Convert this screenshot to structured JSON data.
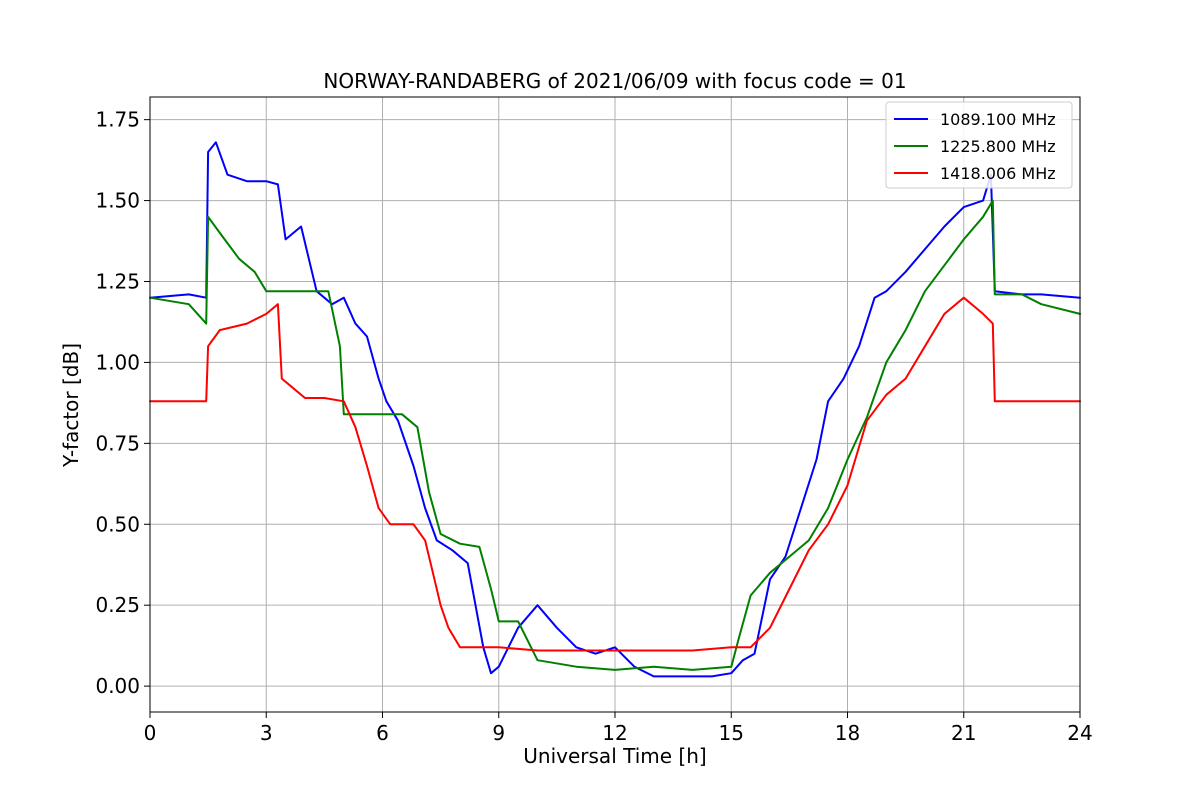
{
  "chart_data": {
    "type": "line",
    "title": "NORWAY-RANDABERG of 2021/06/09 with focus code = 01",
    "xlabel": "Universal Time [h]",
    "ylabel": "Y-factor [dB]",
    "xlim": [
      0,
      24
    ],
    "ylim": [
      -0.08,
      1.82
    ],
    "xticks": [
      0,
      3,
      6,
      9,
      12,
      15,
      18,
      21,
      24
    ],
    "yticks": [
      0.0,
      0.25,
      0.5,
      0.75,
      1.0,
      1.25,
      1.5,
      1.75
    ],
    "xtick_labels": [
      "0",
      "3",
      "6",
      "9",
      "12",
      "15",
      "18",
      "21",
      "24"
    ],
    "ytick_labels": [
      "0.00",
      "0.25",
      "0.50",
      "0.75",
      "1.00",
      "1.25",
      "1.50",
      "1.75"
    ],
    "grid": true,
    "legend_position": "top-right",
    "series": [
      {
        "name": "1089.100 MHz",
        "color": "#0000ff",
        "x": [
          0,
          1.0,
          1.45,
          1.5,
          1.7,
          2.0,
          2.5,
          3.0,
          3.3,
          3.5,
          3.9,
          4.3,
          4.7,
          5.0,
          5.3,
          5.6,
          5.9,
          6.1,
          6.4,
          6.8,
          7.1,
          7.4,
          7.8,
          8.2,
          8.6,
          8.8,
          9.0,
          9.5,
          10.0,
          10.5,
          11.0,
          11.5,
          12.0,
          12.5,
          13.0,
          13.5,
          14.0,
          14.5,
          15.0,
          15.3,
          15.6,
          16.0,
          16.4,
          16.8,
          17.2,
          17.5,
          17.9,
          18.3,
          18.7,
          19.0,
          19.5,
          20.0,
          20.5,
          21.0,
          21.5,
          21.7,
          21.8,
          22.5,
          23.0,
          24.0
        ],
        "y": [
          1.2,
          1.21,
          1.2,
          1.65,
          1.68,
          1.58,
          1.56,
          1.56,
          1.55,
          1.38,
          1.42,
          1.22,
          1.18,
          1.2,
          1.12,
          1.08,
          0.95,
          0.88,
          0.82,
          0.68,
          0.55,
          0.45,
          0.42,
          0.38,
          0.12,
          0.04,
          0.06,
          0.18,
          0.25,
          0.18,
          0.12,
          0.1,
          0.12,
          0.06,
          0.03,
          0.03,
          0.03,
          0.03,
          0.04,
          0.08,
          0.1,
          0.33,
          0.4,
          0.55,
          0.7,
          0.88,
          0.95,
          1.05,
          1.2,
          1.22,
          1.28,
          1.35,
          1.42,
          1.48,
          1.5,
          1.58,
          1.22,
          1.21,
          1.21,
          1.2
        ]
      },
      {
        "name": "1225.800 MHz",
        "color": "#008000",
        "x": [
          0,
          1.0,
          1.45,
          1.5,
          1.8,
          2.3,
          2.7,
          3.0,
          3.3,
          3.5,
          4.0,
          4.6,
          4.9,
          5.0,
          5.5,
          6.0,
          6.5,
          6.9,
          7.2,
          7.5,
          8.0,
          8.5,
          8.8,
          9.0,
          9.5,
          10.0,
          11.0,
          12.0,
          13.0,
          14.0,
          15.0,
          15.2,
          15.5,
          16.0,
          16.5,
          17.0,
          17.5,
          18.0,
          18.5,
          19.0,
          19.5,
          20.0,
          20.5,
          21.0,
          21.5,
          21.75,
          21.8,
          22.5,
          23.0,
          24.0
        ],
        "y": [
          1.2,
          1.18,
          1.12,
          1.45,
          1.4,
          1.32,
          1.28,
          1.22,
          1.22,
          1.22,
          1.22,
          1.22,
          1.05,
          0.84,
          0.84,
          0.84,
          0.84,
          0.8,
          0.6,
          0.47,
          0.44,
          0.43,
          0.3,
          0.2,
          0.2,
          0.08,
          0.06,
          0.05,
          0.06,
          0.05,
          0.06,
          0.15,
          0.28,
          0.35,
          0.4,
          0.45,
          0.55,
          0.7,
          0.83,
          1.0,
          1.1,
          1.22,
          1.3,
          1.38,
          1.45,
          1.5,
          1.21,
          1.21,
          1.18,
          1.15
        ]
      },
      {
        "name": "1418.006 MHz",
        "color": "#ff0000",
        "x": [
          0,
          1.0,
          1.45,
          1.5,
          1.8,
          2.5,
          3.0,
          3.3,
          3.4,
          3.7,
          4.0,
          4.5,
          5.0,
          5.3,
          5.6,
          5.9,
          6.2,
          6.8,
          7.1,
          7.3,
          7.5,
          7.7,
          8.0,
          9.0,
          10.0,
          11.0,
          12.0,
          13.0,
          14.0,
          15.0,
          15.5,
          16.0,
          16.5,
          17.0,
          17.5,
          18.0,
          18.5,
          19.0,
          19.5,
          20.0,
          20.5,
          21.0,
          21.5,
          21.75,
          21.8,
          22.5,
          23.0,
          24.0
        ],
        "y": [
          0.88,
          0.88,
          0.88,
          1.05,
          1.1,
          1.12,
          1.15,
          1.18,
          0.95,
          0.92,
          0.89,
          0.89,
          0.88,
          0.8,
          0.68,
          0.55,
          0.5,
          0.5,
          0.45,
          0.35,
          0.25,
          0.18,
          0.12,
          0.12,
          0.11,
          0.11,
          0.11,
          0.11,
          0.11,
          0.12,
          0.12,
          0.18,
          0.3,
          0.42,
          0.5,
          0.62,
          0.82,
          0.9,
          0.95,
          1.05,
          1.15,
          1.2,
          1.15,
          1.12,
          0.88,
          0.88,
          0.88,
          0.88
        ]
      }
    ]
  }
}
